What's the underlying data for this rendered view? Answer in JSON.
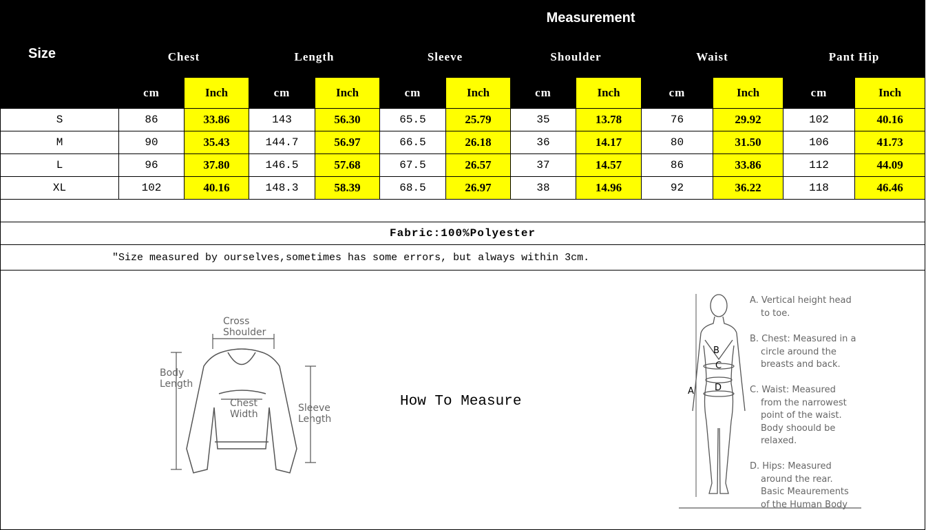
{
  "header": {
    "size_label": "Size",
    "measurement_label": "Measurement"
  },
  "columns": [
    "Chest",
    "Length",
    "Sleeve",
    "Shoulder",
    "Waist",
    "Pant Hip"
  ],
  "units": {
    "cm": "cm",
    "inch": "Inch"
  },
  "rows": [
    {
      "size": "S",
      "values": [
        "86",
        "33.86",
        "143",
        "56.30",
        "65.5",
        "25.79",
        "35",
        "13.78",
        "76",
        "29.92",
        "102",
        "40.16"
      ]
    },
    {
      "size": "M",
      "values": [
        "90",
        "35.43",
        "144.7",
        "56.97",
        "66.5",
        "26.18",
        "36",
        "14.17",
        "80",
        "31.50",
        "106",
        "41.73"
      ]
    },
    {
      "size": "L",
      "values": [
        "96",
        "37.80",
        "146.5",
        "57.68",
        "67.5",
        "26.57",
        "37",
        "14.57",
        "86",
        "33.86",
        "112",
        "44.09"
      ]
    },
    {
      "size": "XL",
      "values": [
        "102",
        "40.16",
        "148.3",
        "58.39",
        "68.5",
        "26.97",
        "38",
        "14.96",
        "92",
        "36.22",
        "118",
        "46.46"
      ]
    }
  ],
  "fabric": "Fabric:100%Polyester",
  "note": "\"Size measured by ourselves,sometimes has some errors, but always within 3cm.",
  "how_to_measure": "How To Measure",
  "garment_labels": {
    "cross_shoulder": [
      "Cross",
      "Shoulder"
    ],
    "body_length": [
      "Body",
      "Length"
    ],
    "chest_width": [
      "Chest",
      "Width"
    ],
    "sleeve_length": [
      "Sleeve",
      "Length"
    ]
  },
  "body_markers": [
    "A",
    "B",
    "C",
    "D"
  ],
  "body_notes": [
    [
      "A. Vertical height head",
      "to toe."
    ],
    [
      "B. Chest: Measured in a",
      "circle around the",
      "breasts and back."
    ],
    [
      "C. Waist: Measured",
      "from the narrowest",
      "point of the waist.",
      "Body shoould be",
      "relaxed."
    ],
    [
      "D. Hips: Measured",
      "around the rear.",
      "Basic Meaurements",
      "of the Human Body"
    ]
  ],
  "colors": {
    "header_bg": "#000000",
    "inch_bg": "#ffff00"
  }
}
